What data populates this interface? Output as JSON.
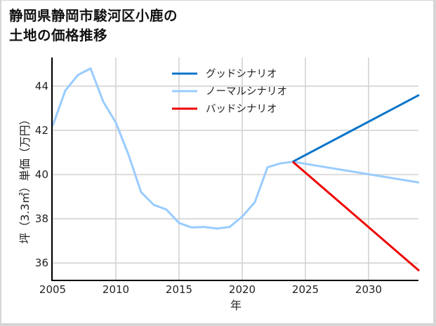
{
  "title_line1": "静岡県静岡市駿河区小鹿の",
  "title_line2": "土地の価格推移",
  "chart_data": {
    "type": "line",
    "title": "静岡県静岡市駿河区小鹿の土地の価格推移",
    "xlabel": "年",
    "ylabel": "坪（3.3㎡）単価（万円）",
    "xlim": [
      2005,
      2034
    ],
    "ylim": [
      35.2,
      45.2
    ],
    "xticks": [
      2005,
      2010,
      2015,
      2020,
      2025,
      2030
    ],
    "yticks": [
      36,
      38,
      40,
      42,
      44
    ],
    "grid": true,
    "legend_position": "upper center",
    "series": [
      {
        "name": "グッドシナリオ",
        "color": "#0b75c9",
        "x": [
          2024,
          2034
        ],
        "values": [
          40.58,
          43.6
        ]
      },
      {
        "name": "ノーマルシナリオ",
        "color": "#99ccff",
        "x": [
          2005,
          2006,
          2007,
          2008,
          2009,
          2010,
          2011,
          2012,
          2013,
          2014,
          2015,
          2016,
          2017,
          2018,
          2019,
          2020,
          2021,
          2022,
          2023,
          2024,
          2034
        ],
        "values": [
          42.2,
          43.8,
          44.5,
          44.8,
          43.3,
          42.35,
          40.9,
          39.2,
          38.63,
          38.42,
          37.81,
          37.61,
          37.63,
          37.56,
          37.63,
          38.1,
          38.75,
          40.33,
          40.5,
          40.58,
          39.64
        ]
      },
      {
        "name": "バッドシナリオ",
        "color": "#ee0000",
        "x": [
          2024,
          2034
        ],
        "values": [
          40.58,
          35.65
        ]
      }
    ]
  }
}
